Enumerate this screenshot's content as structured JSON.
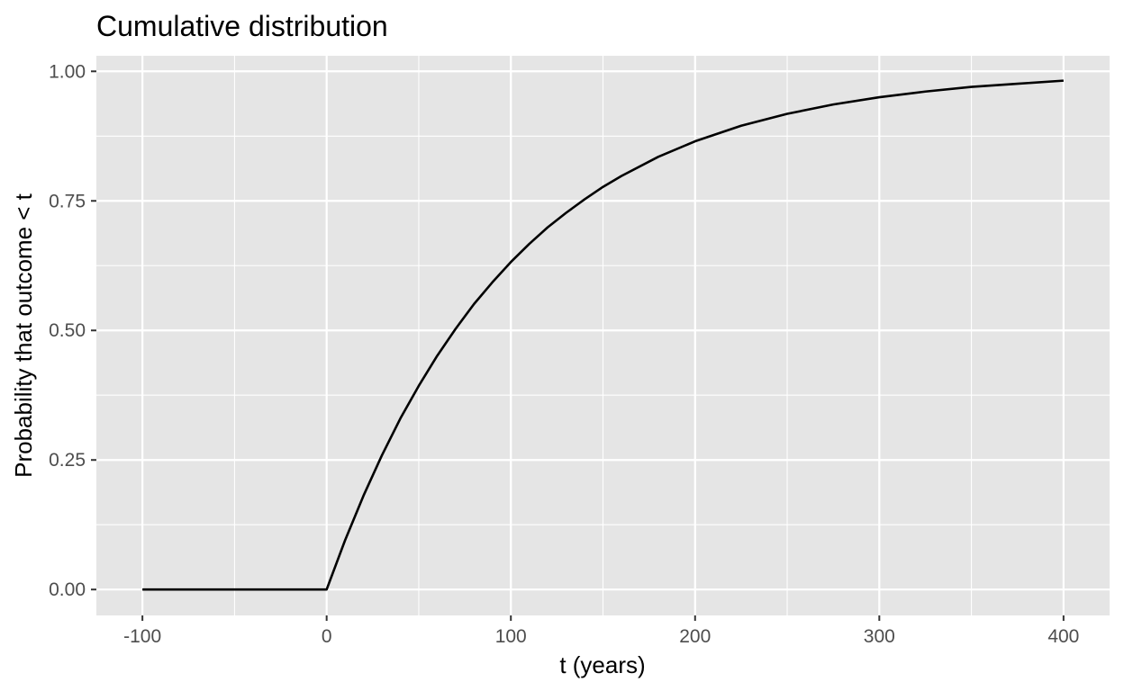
{
  "chart_data": {
    "type": "line",
    "title": "Cumulative distribution",
    "xlabel": "t (years)",
    "ylabel": "Probability that outcome < t",
    "xlim": [
      -125,
      425
    ],
    "ylim": [
      -0.05,
      1.03
    ],
    "x_ticks": [
      -100,
      0,
      100,
      200,
      300,
      400
    ],
    "x_tick_labels": [
      "-100",
      "0",
      "100",
      "200",
      "300",
      "400"
    ],
    "y_ticks": [
      0,
      0.25,
      0.5,
      0.75,
      1
    ],
    "y_tick_labels": [
      "0.00",
      "0.25",
      "0.50",
      "0.75",
      "1.00"
    ],
    "grid": true,
    "background_color": "#e5e5e5",
    "grid_color": "#ffffff",
    "line_color": "#000000",
    "series": [
      {
        "x": [
          -100,
          -75,
          -50,
          -25,
          0,
          10,
          20,
          30,
          40,
          50,
          60,
          70,
          80,
          90,
          100,
          110,
          120,
          130,
          140,
          150,
          160,
          180,
          200,
          225,
          250,
          275,
          300,
          325,
          350,
          375,
          400
        ],
        "y": [
          0,
          0,
          0,
          0,
          0,
          0.095,
          0.181,
          0.259,
          0.33,
          0.393,
          0.451,
          0.503,
          0.551,
          0.593,
          0.632,
          0.667,
          0.699,
          0.727,
          0.753,
          0.777,
          0.798,
          0.835,
          0.865,
          0.895,
          0.918,
          0.936,
          0.95,
          0.961,
          0.97,
          0.976,
          0.982
        ]
      }
    ]
  }
}
